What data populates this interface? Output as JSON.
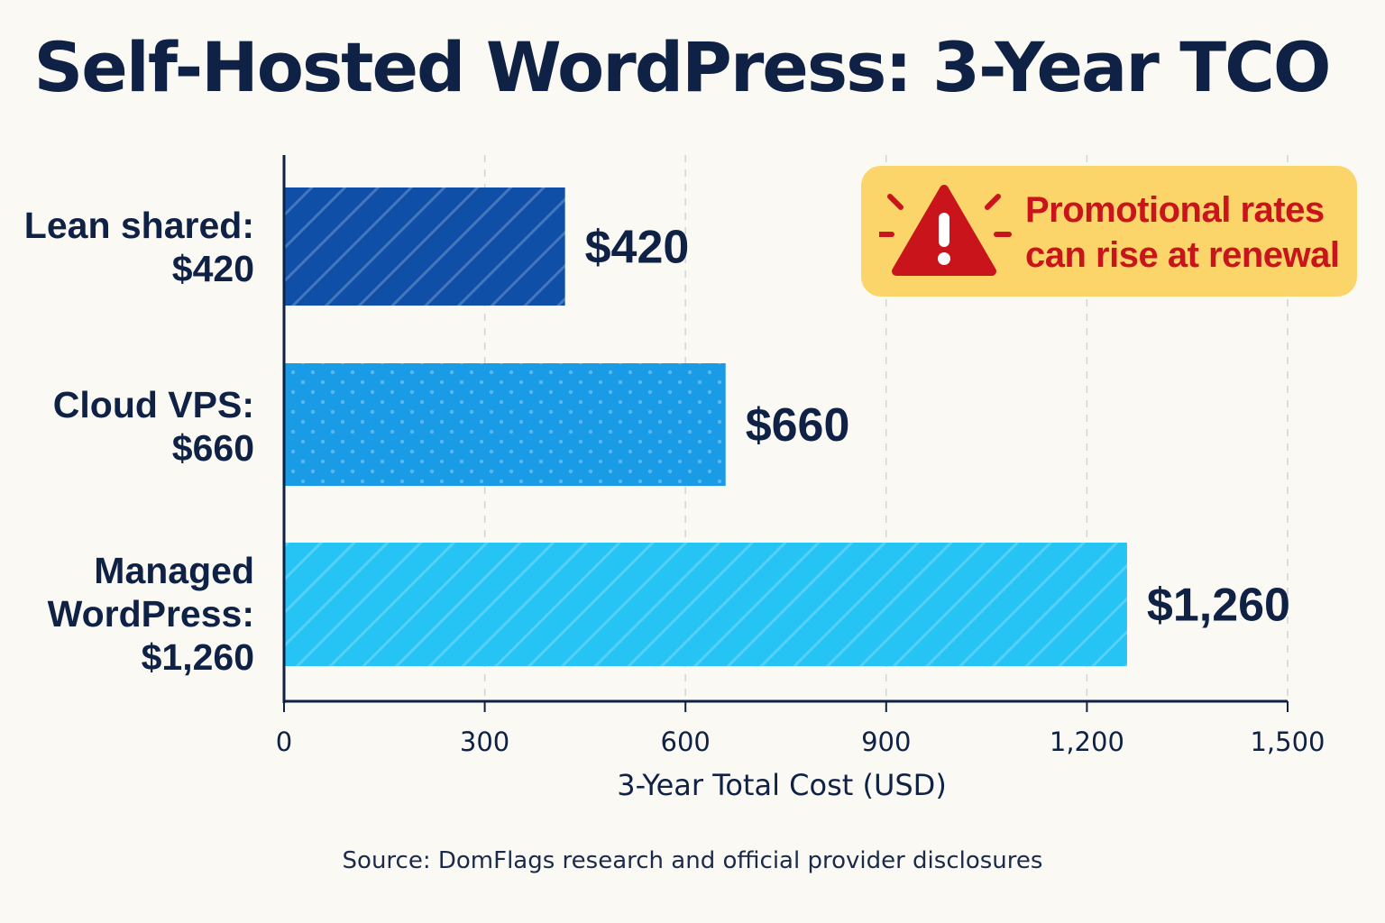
{
  "header": {
    "title": "Self-Hosted WordPress: 3-Year TCO"
  },
  "callout": {
    "line1": "Promotional rates",
    "line2": "can rise at renewal",
    "icon": "warning-triangle-icon",
    "background_color": "#fbd46a",
    "text_color": "#c9141c"
  },
  "source": "Source: DomFlags research and official provider disclosures",
  "category_labels": [
    {
      "name": "Lean shared:",
      "amount": "$420"
    },
    {
      "name": "Cloud VPS:",
      "amount": "$660"
    },
    {
      "name_lines": [
        "Managed",
        "WordPress:"
      ],
      "amount": "$1,260"
    }
  ],
  "chart_data": {
    "type": "bar",
    "orientation": "horizontal",
    "categories": [
      "Lean shared",
      "Cloud VPS",
      "Managed WordPress"
    ],
    "values": [
      420,
      660,
      1260
    ],
    "value_labels": [
      "$420",
      "$660",
      "$1,260"
    ],
    "bar_colors": [
      "#0f4fa8",
      "#1a9be6",
      "#26c3f5"
    ],
    "bar_patterns": [
      "diagonal-stripes",
      "dots",
      "diagonal-stripes"
    ],
    "xlabel": "3-Year Total Cost (USD)",
    "ylabel": "",
    "xlim": [
      0,
      1500
    ],
    "xticks": [
      0,
      300,
      600,
      900,
      1200,
      1500
    ],
    "xtick_labels": [
      "0",
      "300",
      "600",
      "900",
      "1,200",
      "1,500"
    ],
    "grid": "vertical dashed"
  }
}
